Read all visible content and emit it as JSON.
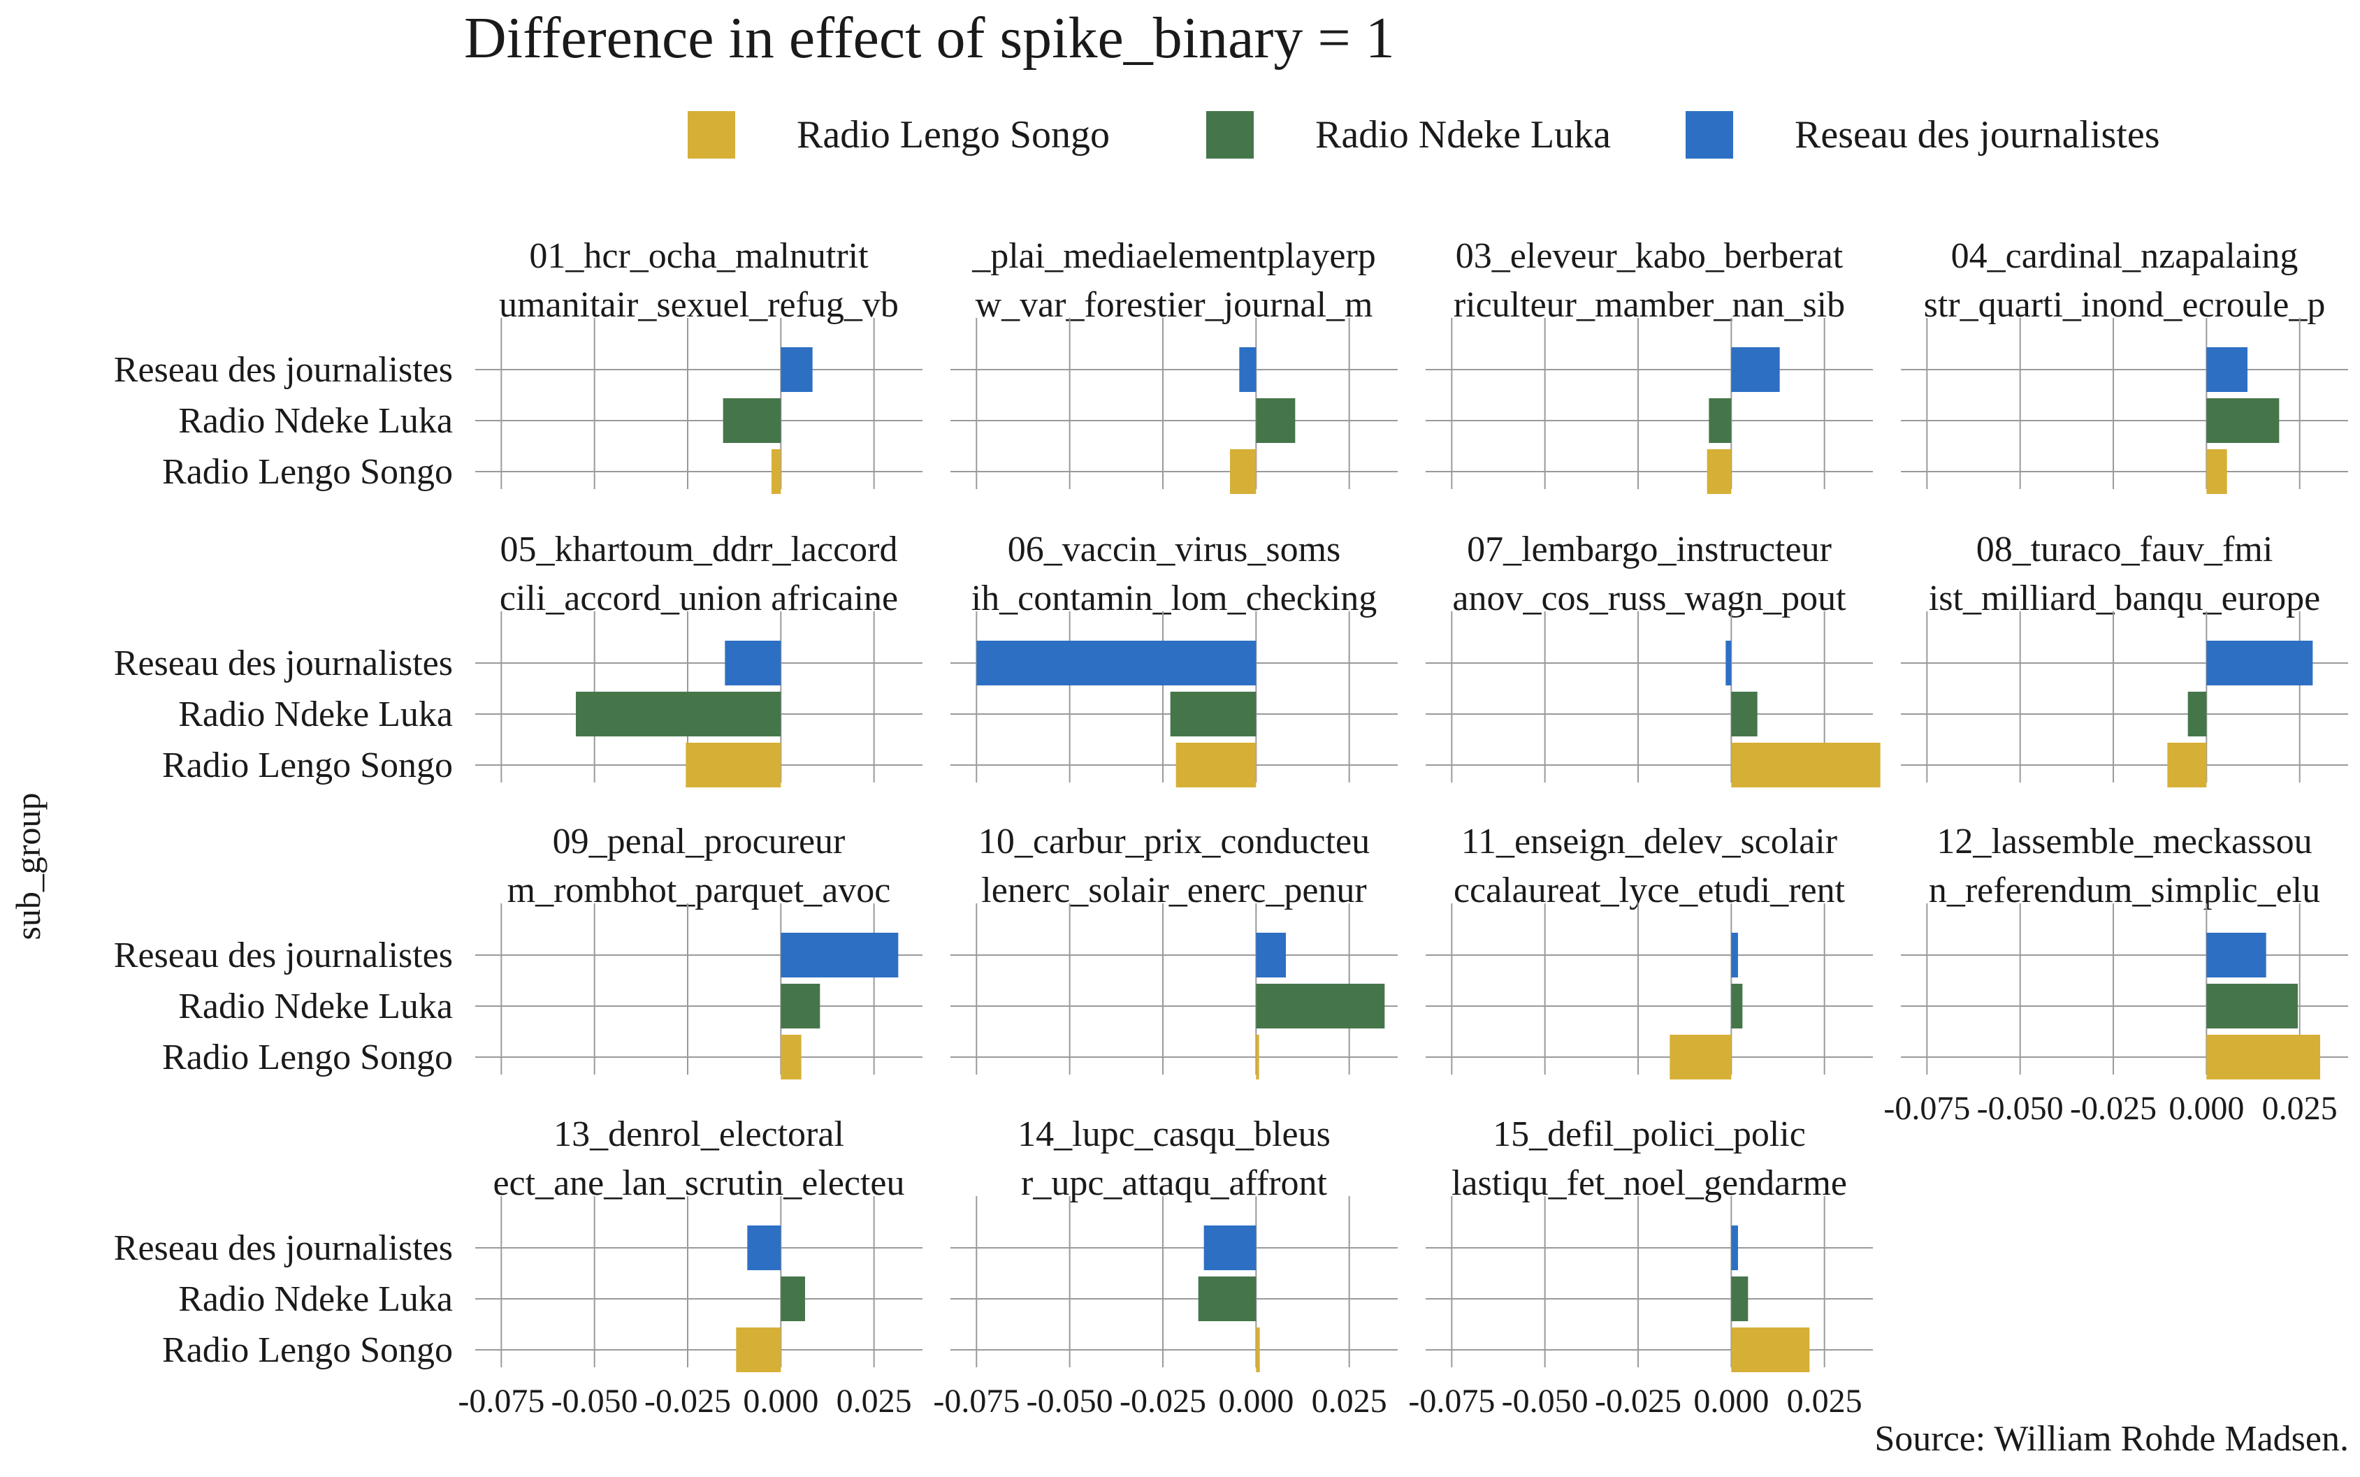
{
  "chart_data": {
    "type": "bar",
    "orientation": "horizontal",
    "layout": "facet_wrap",
    "title": "Difference in effect of  spike_binary = 1",
    "ylabel": "sub_group",
    "xlabel": "",
    "xlim": [
      -0.082,
      0.038
    ],
    "xticks": [
      "-0.075",
      "-0.050",
      "-0.025",
      "0.000",
      "0.025"
    ],
    "categories": [
      "Reseau des journalistes",
      "Radio Ndeke Luka",
      "Radio Lengo Songo"
    ],
    "legend": {
      "position": "top",
      "items": [
        {
          "label": "Radio Lengo Songo",
          "color": "#D6AF36"
        },
        {
          "label": "Radio Ndeke Luka",
          "color": "#45764A"
        },
        {
          "label": "Reseau des journalistes",
          "color": "#2D6FC3"
        }
      ]
    },
    "grid": true,
    "panels": [
      {
        "strip": [
          "01_hcr_ocha_malnutrit",
          "umanitair_sexuel_refug_vb"
        ],
        "values": [
          0.0085,
          -0.0155,
          -0.0025
        ]
      },
      {
        "strip": [
          "_plai_mediaelementplayerp",
          "w_var_forestier_journal_m"
        ],
        "values": [
          -0.0045,
          0.0105,
          -0.007
        ]
      },
      {
        "strip": [
          "03_eleveur_kabo_berberat",
          "riculteur_mamber_nan_sib"
        ],
        "values": [
          0.013,
          -0.006,
          -0.0065
        ]
      },
      {
        "strip": [
          "04_cardinal_nzapalaing",
          "str_quarti_inond_ecroule_p"
        ],
        "values": [
          0.011,
          0.0195,
          0.0055
        ]
      },
      {
        "strip": [
          "05_khartoum_ddrr_laccord",
          "cili_accord_union africaine"
        ],
        "values": [
          -0.015,
          -0.055,
          -0.0255
        ]
      },
      {
        "strip": [
          "06_vaccin_virus_soms",
          "ih_contamin_lom_checking"
        ],
        "values": [
          -0.075,
          -0.023,
          -0.0215
        ]
      },
      {
        "strip": [
          "07_lembargo_instructeur",
          "anov_cos_russ_wagn_pout"
        ],
        "values": [
          -0.0015,
          0.007,
          0.04
        ]
      },
      {
        "strip": [
          "08_turaco_fauv_fmi",
          "ist_milliard_banqu_europe"
        ],
        "values": [
          0.0285,
          -0.005,
          -0.0105
        ]
      },
      {
        "strip": [
          "09_penal_procureur",
          "m_rombhot_parquet_avoc"
        ],
        "values": [
          0.0315,
          0.0105,
          0.0055
        ]
      },
      {
        "strip": [
          "10_carbur_prix_conducteu",
          "lenerc_solair_enerc_penur"
        ],
        "values": [
          0.008,
          0.0345,
          0.0008
        ]
      },
      {
        "strip": [
          "11_enseign_delev_scolair",
          "ccalaureat_lyce_etudi_rent"
        ],
        "values": [
          0.0018,
          0.003,
          -0.0165
        ]
      },
      {
        "strip": [
          "12_lassemble_meckassou",
          "n_referendum_simplic_elu"
        ],
        "values": [
          0.016,
          0.0245,
          0.0305
        ]
      },
      {
        "strip": [
          "13_denrol_electoral",
          "ect_ane_lan_scrutin_electeu"
        ],
        "values": [
          -0.009,
          0.0065,
          -0.012
        ]
      },
      {
        "strip": [
          "14_lupc_casqu_bleus",
          "r_upc_attaqu_affront"
        ],
        "values": [
          -0.014,
          -0.0155,
          0.001
        ]
      },
      {
        "strip": [
          "15_defil_polici_polic",
          "lastiqu_fet_noel_gendarme"
        ],
        "values": [
          0.0018,
          0.0045,
          0.021
        ]
      }
    ],
    "source": "Source: William Rohde Madsen."
  }
}
